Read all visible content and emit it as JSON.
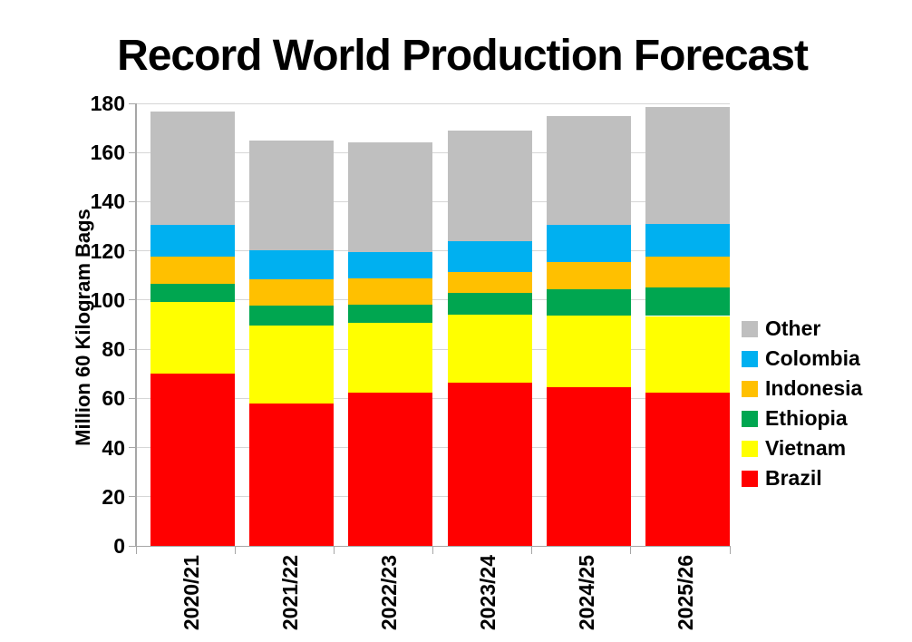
{
  "chart_data": {
    "type": "bar",
    "stacked": true,
    "title": "Record World Production Forecast",
    "ylabel": "Million 60 Kilogram Bags",
    "categories": [
      "2020/21",
      "2021/22",
      "2022/23",
      "2023/24",
      "2024/25",
      "2025/26"
    ],
    "series": [
      {
        "name": "Brazil",
        "color": "#FF0000",
        "values": [
          69.9,
          58.0,
          62.3,
          66.3,
          64.4,
          62.3
        ]
      },
      {
        "name": "Vietnam",
        "color": "#FFFF00",
        "values": [
          29.2,
          31.5,
          28.4,
          27.9,
          29.3,
          31.2
        ]
      },
      {
        "name": "Ethiopia",
        "color": "#00A650",
        "values": [
          7.5,
          8.1,
          7.4,
          8.6,
          10.8,
          11.6
        ]
      },
      {
        "name": "Indonesia",
        "color": "#FFC000",
        "values": [
          10.9,
          11.0,
          10.6,
          8.6,
          11.1,
          12.5
        ]
      },
      {
        "name": "Colombia",
        "color": "#00B0F0",
        "values": [
          13.2,
          11.7,
          10.7,
          12.6,
          15.1,
          13.4
        ]
      },
      {
        "name": "Other",
        "color": "#BFBFBF",
        "values": [
          45.8,
          44.5,
          44.8,
          45.1,
          44.0,
          47.5
        ]
      }
    ],
    "totals": [
      176.5,
      164.8,
      164.2,
      169.1,
      174.7,
      178.5
    ],
    "legend_order_top_to_bottom": [
      "Other",
      "Colombia",
      "Indonesia",
      "Ethiopia",
      "Vietnam",
      "Brazil"
    ],
    "legend_position": "right",
    "ylim": [
      0,
      180
    ],
    "ytick_step": 20,
    "ytick_labels": [
      "0",
      "20",
      "40",
      "60",
      "80",
      "100",
      "120",
      "140",
      "160",
      "180"
    ],
    "grid": true,
    "gridline_color": "#D6D6D6",
    "axis_color": "#A6A6A6",
    "text_color": "#000000",
    "background": "#FFFFFF"
  }
}
